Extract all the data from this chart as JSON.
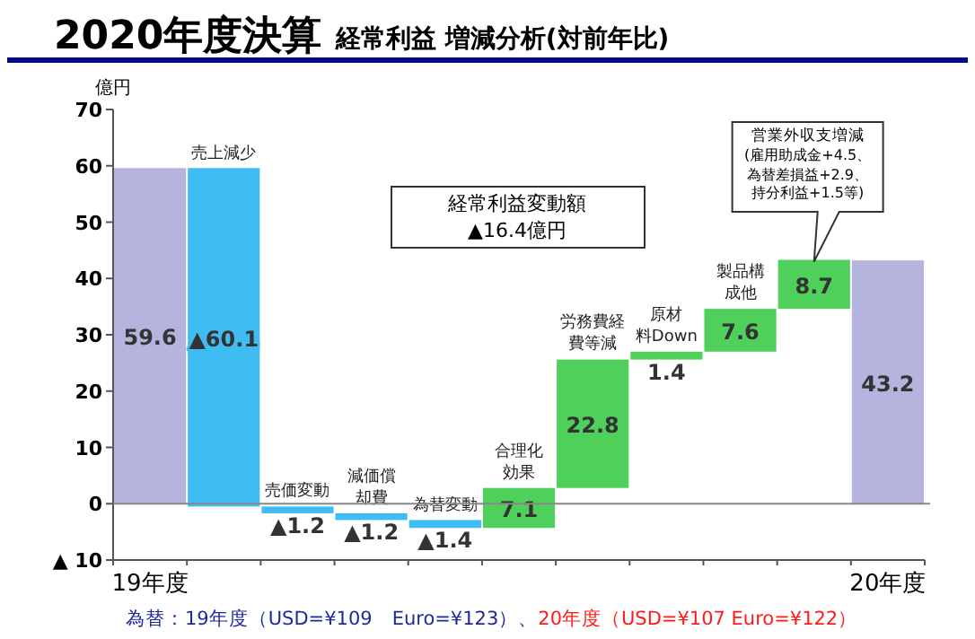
{
  "chart_data": {
    "type": "bar",
    "title": "2020年度決算",
    "subtitle": "経常利益 増減分析(対前年比)",
    "ylabel": "億円",
    "categories": [
      "19年度",
      "売上減少",
      "売価変動",
      "減価償却費",
      "為替変動",
      "合理化効果",
      "労務費経費等減",
      "原材料Down",
      "製品構成他",
      "営業外収支増減",
      "20年度"
    ],
    "values": [
      59.6,
      -60.1,
      -1.2,
      -1.2,
      -1.4,
      7.1,
      22.8,
      1.4,
      7.6,
      8.7,
      43.2
    ],
    "base": [
      null,
      59.6,
      -0.5,
      -1.7,
      -2.9,
      -4.3,
      2.8,
      25.6,
      27.0,
      34.6,
      null
    ],
    "colors": [
      "#b4b4df",
      "#3fbdf2",
      "#3fbdf2",
      "#3fbdf2",
      "#3fbdf2",
      "#4fd05a",
      "#4fd05a",
      "#4fd05a",
      "#4fd05a",
      "#4fd05a",
      "#b4b4df"
    ],
    "value_labels": [
      "59.6",
      "▲60.1",
      "▲1.2",
      "▲1.2",
      "▲1.4",
      "7.1",
      "22.8",
      "1.4",
      "7.6",
      "8.7",
      "43.2"
    ],
    "ylim": [
      -10,
      70
    ],
    "yticks": [
      {
        "value": -10,
        "label": "▲ 10"
      },
      0,
      10,
      20,
      30,
      40,
      50,
      60,
      70
    ],
    "annotations": [
      "経常利益変動額\n▲16.4億円",
      "(雇用助成金+4.5、為替差損益+2.9、持分利益+1.5等)",
      "為替：19年度（USD=¥109　Euro=¥123）、",
      "20年度（USD=¥107 Euro=¥122）"
    ]
  }
}
